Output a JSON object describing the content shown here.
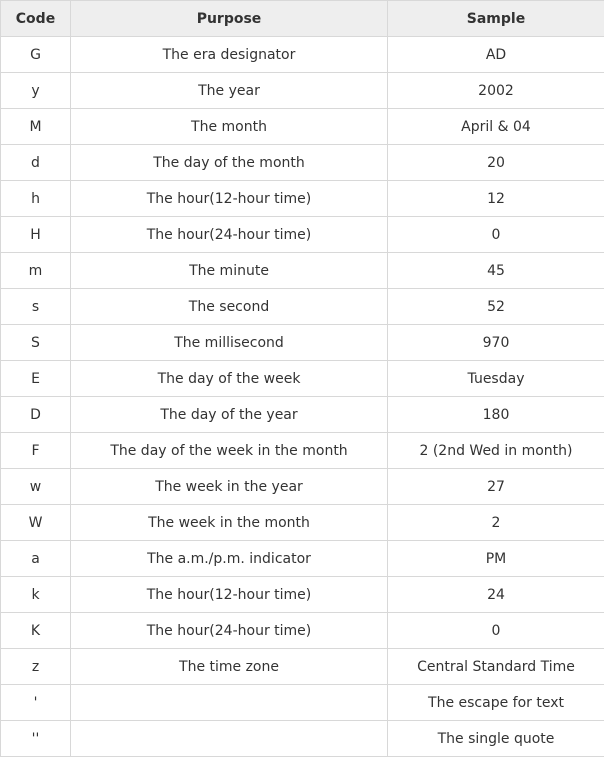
{
  "table": {
    "headers": [
      "Code",
      "Purpose",
      "Sample"
    ],
    "rows": [
      [
        "G",
        "The era designator",
        "AD"
      ],
      [
        "y",
        "The year",
        "2002"
      ],
      [
        "M",
        "The month",
        "April & 04"
      ],
      [
        "d",
        "The day of the month",
        "20"
      ],
      [
        "h",
        "The hour(12-hour time)",
        "12"
      ],
      [
        "H",
        "The hour(24-hour time)",
        "0"
      ],
      [
        "m",
        "The minute",
        "45"
      ],
      [
        "s",
        "The second",
        "52"
      ],
      [
        "S",
        "The millisecond",
        "970"
      ],
      [
        "E",
        "The day of the week",
        "Tuesday"
      ],
      [
        "D",
        "The day of the year",
        "180"
      ],
      [
        "F",
        "The day of the week in the month",
        "2 (2nd Wed in month)"
      ],
      [
        "w",
        "The week in the year",
        "27"
      ],
      [
        "W",
        "The week in the month",
        "2"
      ],
      [
        "a",
        "The a.m./p.m. indicator",
        "PM"
      ],
      [
        "k",
        "The hour(12-hour time)",
        "24"
      ],
      [
        "K",
        "The hour(24-hour time)",
        "0"
      ],
      [
        "z",
        "The time zone",
        "Central Standard Time"
      ],
      [
        "'",
        "",
        "The escape for text"
      ],
      [
        "''",
        "",
        "The single quote"
      ]
    ]
  }
}
